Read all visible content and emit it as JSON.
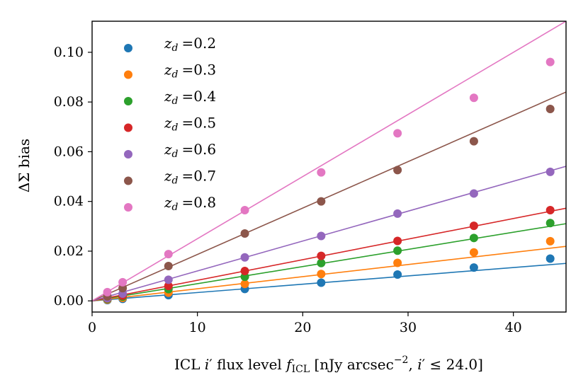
{
  "chart_data": {
    "type": "scatter",
    "xlabel": "ICL i′ flux level f_ICL [nJy arcsec⁻², i′ ≤ 24.0]",
    "xlabel_parts": {
      "prefix": "ICL ",
      "i_symbol": "i",
      "prime": "′",
      "middle": " flux level ",
      "f_symbol": "f",
      "f_subscript": "ICL",
      "bracket_text": " [nJy arcsec",
      "exponent": "−2",
      "after_exponent": ", ",
      "i2_symbol": "i",
      "prime2": "′",
      "leq": " ≤ 24.0]"
    },
    "ylabel": "ΔΣ bias",
    "xlim": [
      0,
      45
    ],
    "ylim": [
      -0.0045,
      0.1125
    ],
    "xticks": [
      0,
      10,
      20,
      30,
      40
    ],
    "xtick_labels": [
      "0",
      "10",
      "20",
      "30",
      "40"
    ],
    "yticks": [
      0.0,
      0.02,
      0.04,
      0.06,
      0.08,
      0.1
    ],
    "ytick_labels": [
      "0.00",
      "0.02",
      "0.04",
      "0.06",
      "0.08",
      "0.10"
    ],
    "legend_position": "upper-left",
    "legend_symbol": "z",
    "legend_subscript": "d",
    "x": [
      1.45,
      2.9,
      7.25,
      14.5,
      21.75,
      29.0,
      36.25,
      43.5
    ],
    "series": [
      {
        "name": "z_d =0.2",
        "label": "=0.2",
        "color": "#1f77b4",
        "slope": 0.000335,
        "values": [
          0.0003,
          0.0008,
          0.0023,
          0.0048,
          0.0073,
          0.0106,
          0.0134,
          0.017
        ]
      },
      {
        "name": "z_d =0.3",
        "label": "=0.3",
        "color": "#ff7f0e",
        "slope": 0.000487,
        "values": [
          0.0005,
          0.0012,
          0.0033,
          0.0068,
          0.0108,
          0.0153,
          0.0195,
          0.024
        ]
      },
      {
        "name": "z_d =0.4",
        "label": "=0.4",
        "color": "#2ca02c",
        "slope": 0.00069,
        "values": [
          0.0008,
          0.0017,
          0.0047,
          0.0097,
          0.0152,
          0.0202,
          0.0253,
          0.0313
        ]
      },
      {
        "name": "z_d =0.5",
        "label": "=0.5",
        "color": "#d62728",
        "slope": 0.000828,
        "values": [
          0.001,
          0.0021,
          0.006,
          0.012,
          0.0181,
          0.0241,
          0.0302,
          0.0365
        ]
      },
      {
        "name": "z_d =0.6",
        "label": "=0.6",
        "color": "#9467bd",
        "slope": 0.001203,
        "values": [
          0.0011,
          0.0029,
          0.0085,
          0.0175,
          0.0261,
          0.0351,
          0.0432,
          0.0519
        ]
      },
      {
        "name": "z_d =0.7",
        "label": "=0.7",
        "color": "#8c564b",
        "slope": 0.001867,
        "values": [
          0.0018,
          0.0051,
          0.014,
          0.0271,
          0.04,
          0.0526,
          0.0642,
          0.0772
        ]
      },
      {
        "name": "z_d =0.8",
        "label": "=0.8",
        "color": "#e377c2",
        "slope": 0.0025,
        "values": [
          0.0035,
          0.0075,
          0.0188,
          0.0365,
          0.0517,
          0.0674,
          0.0817,
          0.0961
        ]
      }
    ]
  }
}
